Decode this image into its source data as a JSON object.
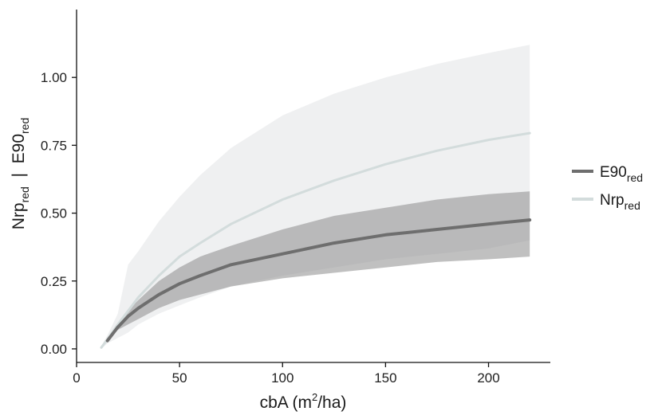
{
  "chart_data": {
    "type": "line",
    "title": "",
    "xlabel": {
      "main": "cbA (m",
      "sup": "2",
      "tail": "/ha)"
    },
    "ylabel": {
      "p1": "Nrp",
      "s1": "red",
      "mid": "  |  E90",
      "s2": "red"
    },
    "xlim": [
      0,
      230
    ],
    "ylim": [
      -0.05,
      1.25
    ],
    "x_ticks": [
      0,
      50,
      100,
      150,
      200
    ],
    "x_tick_labels": [
      "0",
      "50",
      "100",
      "150",
      "200"
    ],
    "y_ticks": [
      0,
      0.25,
      0.5,
      0.75,
      1.0
    ],
    "y_tick_labels": [
      "0.00",
      "0.25",
      "0.50",
      "0.75",
      "1.00"
    ],
    "grid": false,
    "legend_position": "right",
    "series": [
      {
        "name": "E90",
        "name_sub": "red",
        "color": "#6e6e6e",
        "band_color": "#8c8c8c",
        "band_opacity": 0.55,
        "line_width": 4,
        "x": [
          15,
          20,
          25,
          30,
          40,
          50,
          60,
          75,
          100,
          125,
          150,
          175,
          200,
          220
        ],
        "y": [
          0.03,
          0.08,
          0.12,
          0.15,
          0.2,
          0.24,
          0.27,
          0.31,
          0.35,
          0.39,
          0.42,
          0.44,
          0.46,
          0.475
        ],
        "lower": [
          0.03,
          0.07,
          0.09,
          0.11,
          0.15,
          0.18,
          0.2,
          0.23,
          0.26,
          0.28,
          0.3,
          0.32,
          0.33,
          0.34
        ],
        "upper": [
          0.035,
          0.09,
          0.14,
          0.18,
          0.25,
          0.3,
          0.34,
          0.38,
          0.44,
          0.49,
          0.52,
          0.55,
          0.57,
          0.58
        ]
      },
      {
        "name": "Nrp",
        "name_sub": "red",
        "color": "#d3dcdc",
        "band_color": "#e4e6e8",
        "band_opacity": 0.6,
        "line_width": 3,
        "x": [
          12,
          15,
          20,
          25,
          30,
          40,
          50,
          60,
          75,
          100,
          125,
          150,
          175,
          200,
          220
        ],
        "y": [
          0.005,
          0.035,
          0.09,
          0.14,
          0.19,
          0.27,
          0.34,
          0.39,
          0.46,
          0.55,
          0.62,
          0.68,
          0.73,
          0.77,
          0.795
        ],
        "lower": [
          0.0,
          0.02,
          0.04,
          0.06,
          0.09,
          0.13,
          0.16,
          0.19,
          0.23,
          0.27,
          0.3,
          0.33,
          0.35,
          0.37,
          0.4
        ],
        "upper": [
          0.01,
          0.05,
          0.13,
          0.31,
          0.36,
          0.47,
          0.56,
          0.64,
          0.74,
          0.86,
          0.94,
          1.0,
          1.05,
          1.09,
          1.12
        ]
      }
    ]
  }
}
